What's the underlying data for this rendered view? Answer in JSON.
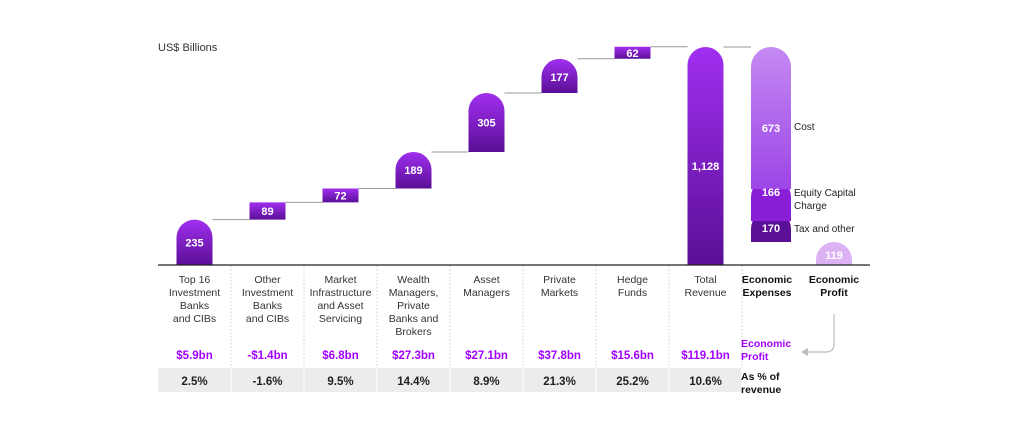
{
  "unit_label": "US$ Billions",
  "colors": {
    "purple_dark": "#5a0f96",
    "purple_mid": "#8a1ed6",
    "purple_bright": "#a12ff0",
    "purple_light": "#b678ee",
    "purple_pale": "#dcb2f4",
    "accent_text": "#a100ff",
    "row_gray": "#ececec",
    "connector": "#9a9a9a"
  },
  "chart_data": {
    "type": "bar",
    "subtype": "waterfall",
    "ylabel": "US$ Billions",
    "categories": [
      "Top 16 Investment Banks and CIBs",
      "Other Investment Banks and CIBs",
      "Market Infrastructure and Asset Servicing",
      "Wealth Managers, Private Banks and Brokers",
      "Asset Managers",
      "Private Markets",
      "Hedge Funds",
      "Total Revenue",
      "Economic Expenses",
      "Economic Profit"
    ],
    "category_lines": [
      [
        "Top 16",
        "Investment",
        "Banks",
        "and CIBs"
      ],
      [
        "Other",
        "Investment",
        "Banks",
        "and CIBs"
      ],
      [
        "Market",
        "Infrastructure",
        "and Asset",
        "Servicing"
      ],
      [
        "Wealth",
        "Managers,",
        "Private",
        "Banks and",
        "Brokers"
      ],
      [
        "Asset",
        "Managers"
      ],
      [
        "Private",
        "Markets"
      ],
      [
        "Hedge",
        "Funds"
      ],
      [
        "Total",
        "Revenue"
      ],
      [
        "Economic",
        "Expenses"
      ],
      [
        "Economic",
        "Profit"
      ]
    ],
    "revenue_steps": [
      {
        "label": "235",
        "value": 235
      },
      {
        "label": "89",
        "value": 89
      },
      {
        "label": "72",
        "value": 72
      },
      {
        "label": "189",
        "value": 189
      },
      {
        "label": "305",
        "value": 305
      },
      {
        "label": "177",
        "value": 177
      },
      {
        "label": "62",
        "value": 62
      }
    ],
    "total_revenue": {
      "label": "1,128",
      "value": 1128
    },
    "expenses": [
      {
        "name": "Cost",
        "label": "673",
        "value": 673
      },
      {
        "name": "Equity Capital Charge",
        "name_lines": [
          "Equity Capital",
          "Charge"
        ],
        "label": "166",
        "value": 166
      },
      {
        "name": "Tax and other",
        "label": "170",
        "value": 170
      }
    ],
    "economic_profit": {
      "label": "119",
      "value": 119
    },
    "ylim": [
      0,
      1128
    ],
    "grid": false,
    "legend": "none",
    "table": {
      "row1_label": "Economic Profit",
      "row1_label_lines": [
        "Economic",
        "Profit"
      ],
      "row1_values": [
        "$5.9bn",
        "-$1.4bn",
        "$6.8bn",
        "$27.3bn",
        "$27.1bn",
        "$37.8bn",
        "$15.6bn",
        "$119.1bn"
      ],
      "row2_label": "As % of revenue",
      "row2_label_lines": [
        "As % of",
        "revenue"
      ],
      "row2_values": [
        "2.5%",
        "-1.6%",
        "9.5%",
        "14.4%",
        "8.9%",
        "21.3%",
        "25.2%",
        "10.6%"
      ]
    }
  }
}
